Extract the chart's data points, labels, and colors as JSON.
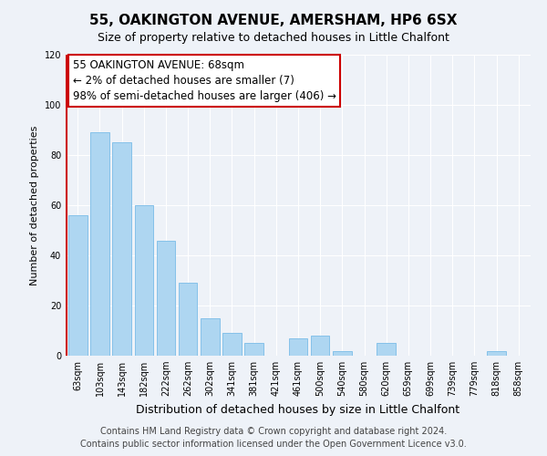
{
  "title": "55, OAKINGTON AVENUE, AMERSHAM, HP6 6SX",
  "subtitle": "Size of property relative to detached houses in Little Chalfont",
  "xlabel": "Distribution of detached houses by size in Little Chalfont",
  "ylabel": "Number of detached properties",
  "bar_labels": [
    "63sqm",
    "103sqm",
    "143sqm",
    "182sqm",
    "222sqm",
    "262sqm",
    "302sqm",
    "341sqm",
    "381sqm",
    "421sqm",
    "461sqm",
    "500sqm",
    "540sqm",
    "580sqm",
    "620sqm",
    "659sqm",
    "699sqm",
    "739sqm",
    "779sqm",
    "818sqm",
    "858sqm"
  ],
  "bar_values": [
    56,
    89,
    85,
    60,
    46,
    29,
    15,
    9,
    5,
    0,
    7,
    8,
    2,
    0,
    5,
    0,
    0,
    0,
    0,
    2,
    0
  ],
  "bar_color": "#aed6f1",
  "bar_edge_color": "#85c1e9",
  "highlight_edge_color": "#cc0000",
  "ylim": [
    0,
    120
  ],
  "yticks": [
    0,
    20,
    40,
    60,
    80,
    100,
    120
  ],
  "annotation_text": "55 OAKINGTON AVENUE: 68sqm\n← 2% of detached houses are smaller (7)\n98% of semi-detached houses are larger (406) →",
  "annotation_box_edge_color": "#cc0000",
  "footer_line1": "Contains HM Land Registry data © Crown copyright and database right 2024.",
  "footer_line2": "Contains public sector information licensed under the Open Government Licence v3.0.",
  "bg_color": "#eef2f8",
  "grid_color": "#ffffff",
  "title_fontsize": 11,
  "subtitle_fontsize": 9,
  "ylabel_fontsize": 8,
  "xlabel_fontsize": 9,
  "tick_fontsize": 7,
  "annotation_fontsize": 8.5,
  "footer_fontsize": 7
}
